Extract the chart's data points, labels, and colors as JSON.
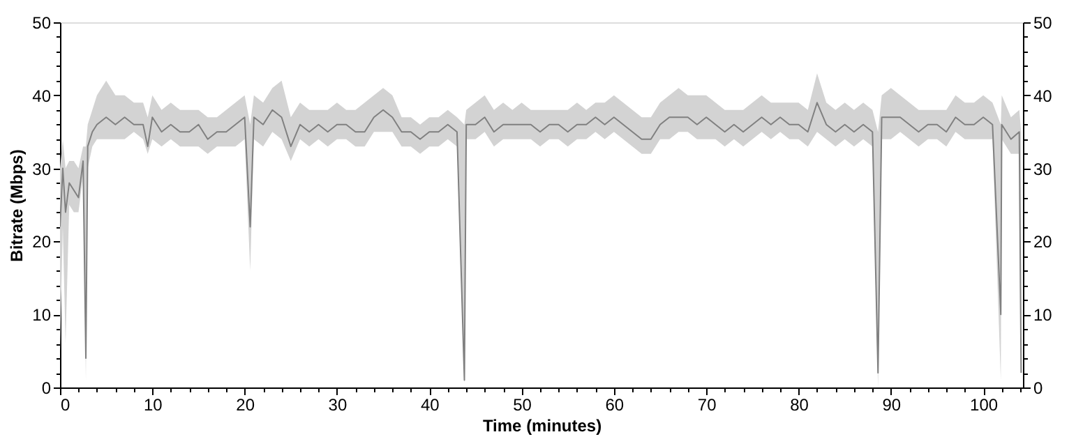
{
  "chart_data": {
    "type": "line",
    "xlabel": "Time (minutes)",
    "ylabel": "Bitrate (Mbps)",
    "x": [
      0,
      0.3,
      0.6,
      1,
      1.5,
      2,
      2.5,
      2.8,
      3,
      3.5,
      4,
      5,
      6,
      7,
      8,
      9,
      9.5,
      10,
      11,
      12,
      13,
      14,
      15,
      16,
      17,
      18,
      19,
      20,
      20.6,
      21,
      22,
      23,
      24,
      25,
      26,
      27,
      28,
      29,
      30,
      31,
      32,
      33,
      34,
      35,
      36,
      37,
      38,
      39,
      40,
      41,
      42,
      43,
      43.8,
      44,
      45,
      46,
      47,
      48,
      49,
      50,
      51,
      52,
      53,
      54,
      55,
      56,
      57,
      58,
      59,
      60,
      61,
      62,
      63,
      64,
      65,
      66,
      67,
      68,
      69,
      70,
      71,
      72,
      73,
      74,
      75,
      76,
      77,
      78,
      79,
      80,
      81,
      82,
      83,
      84,
      85,
      86,
      87,
      88,
      88.6,
      89,
      90,
      91,
      92,
      93,
      94,
      95,
      96,
      97,
      98,
      99,
      100,
      101,
      101.9,
      102,
      103,
      103.9,
      104.1
    ],
    "series": [
      {
        "color": "#808080",
        "values": [
          22,
          30,
          24,
          28,
          27,
          26,
          31,
          4,
          33,
          35,
          36,
          37,
          36,
          37,
          36,
          36,
          33,
          37,
          35,
          36,
          35,
          35,
          36,
          34,
          35,
          35,
          36,
          37,
          22,
          37,
          36,
          38,
          37,
          33,
          36,
          35,
          36,
          35,
          36,
          36,
          35,
          35,
          37,
          38,
          37,
          35,
          35,
          34,
          35,
          35,
          36,
          35,
          1,
          36,
          36,
          37,
          35,
          36,
          36,
          36,
          36,
          35,
          36,
          36,
          35,
          36,
          36,
          37,
          36,
          37,
          36,
          35,
          34,
          34,
          36,
          37,
          37,
          37,
          36,
          37,
          36,
          35,
          36,
          35,
          36,
          37,
          36,
          37,
          36,
          36,
          35,
          39,
          36,
          35,
          36,
          35,
          36,
          35,
          2,
          37,
          37,
          37,
          36,
          35,
          36,
          36,
          35,
          37,
          36,
          36,
          37,
          36,
          10,
          36,
          34,
          35,
          2
        ],
        "lower": [
          5,
          22,
          6,
          25,
          24,
          24,
          29,
          1,
          30,
          33,
          34,
          34,
          34,
          34,
          35,
          34,
          32,
          34,
          33,
          34,
          33,
          33,
          33,
          32,
          33,
          33,
          33,
          34,
          16,
          34,
          33,
          35,
          34,
          31,
          34,
          33,
          34,
          33,
          34,
          34,
          33,
          33,
          35,
          35,
          35,
          33,
          33,
          32,
          33,
          33,
          34,
          33,
          0.5,
          34,
          34,
          35,
          33,
          34,
          34,
          34,
          34,
          33,
          34,
          34,
          33,
          34,
          34,
          35,
          34,
          35,
          34,
          33,
          32,
          32,
          34,
          34,
          35,
          35,
          34,
          34,
          34,
          33,
          34,
          33,
          34,
          35,
          34,
          35,
          34,
          34,
          33,
          35,
          34,
          33,
          34,
          33,
          34,
          33,
          0,
          34,
          34,
          35,
          34,
          33,
          34,
          34,
          33,
          35,
          34,
          34,
          34,
          34,
          1,
          34,
          32,
          32,
          1
        ],
        "upper": [
          30,
          34,
          30,
          31,
          31,
          30,
          33,
          33,
          36,
          38,
          40,
          42,
          40,
          40,
          39,
          39,
          37,
          40,
          38,
          39,
          38,
          38,
          38,
          37,
          37,
          38,
          39,
          40,
          36,
          40,
          39,
          41,
          42,
          37,
          39,
          38,
          38,
          38,
          39,
          38,
          38,
          39,
          40,
          41,
          40,
          37,
          37,
          36,
          37,
          37,
          38,
          37,
          36,
          38,
          39,
          40,
          38,
          39,
          38,
          39,
          38,
          38,
          38,
          38,
          38,
          39,
          38,
          39,
          39,
          40,
          39,
          38,
          37,
          37,
          39,
          40,
          41,
          40,
          40,
          40,
          39,
          38,
          38,
          38,
          39,
          40,
          39,
          39,
          39,
          39,
          38,
          43,
          39,
          38,
          39,
          38,
          39,
          38,
          35,
          40,
          41,
          40,
          39,
          38,
          38,
          38,
          38,
          40,
          39,
          39,
          40,
          39,
          36,
          40,
          37,
          38,
          35
        ]
      }
    ],
    "xlim": [
      0,
      104.3
    ],
    "xticks": [
      0,
      {
        "value": 2,
        "label": null
      },
      {
        "value": 4,
        "label": null
      },
      {
        "value": 6,
        "label": null
      },
      {
        "value": 8,
        "label": null
      },
      10,
      {
        "value": 12,
        "label": null
      },
      {
        "value": 14,
        "label": null
      },
      {
        "value": 16,
        "label": null
      },
      {
        "value": 18,
        "label": null
      },
      20,
      {
        "value": 22,
        "label": null
      },
      {
        "value": 24,
        "label": null
      },
      {
        "value": 26,
        "label": null
      },
      {
        "value": 28,
        "label": null
      },
      30,
      {
        "value": 32,
        "label": null
      },
      {
        "value": 34,
        "label": null
      },
      {
        "value": 36,
        "label": null
      },
      {
        "value": 38,
        "label": null
      },
      40,
      {
        "value": 42,
        "label": null
      },
      {
        "value": 44,
        "label": null
      },
      {
        "value": 46,
        "label": null
      },
      {
        "value": 48,
        "label": null
      },
      50,
      {
        "value": 52,
        "label": null
      },
      {
        "value": 54,
        "label": null
      },
      {
        "value": 56,
        "label": null
      },
      {
        "value": 58,
        "label": null
      },
      60,
      {
        "value": 62,
        "label": null
      },
      {
        "value": 64,
        "label": null
      },
      {
        "value": 66,
        "label": null
      },
      {
        "value": 68,
        "label": null
      },
      70,
      {
        "value": 72,
        "label": null
      },
      {
        "value": 74,
        "label": null
      },
      {
        "value": 76,
        "label": null
      },
      {
        "value": 78,
        "label": null
      },
      80,
      {
        "value": 82,
        "label": null
      },
      {
        "value": 84,
        "label": null
      },
      {
        "value": 86,
        "label": null
      },
      {
        "value": 88,
        "label": null
      },
      90,
      {
        "value": 92,
        "label": null
      },
      {
        "value": 94,
        "label": null
      },
      {
        "value": 96,
        "label": null
      },
      {
        "value": 98,
        "label": null
      },
      100,
      {
        "value": 102,
        "label": null
      },
      {
        "value": 104,
        "label": null
      }
    ],
    "ylim": [
      0,
      50
    ],
    "yticks": [
      0,
      {
        "value": 2,
        "label": null
      },
      {
        "value": 4,
        "label": null
      },
      {
        "value": 6,
        "label": null
      },
      {
        "value": 8,
        "label": null
      },
      10,
      {
        "value": 12,
        "label": null
      },
      {
        "value": 14,
        "label": null
      },
      {
        "value": 16,
        "label": null
      },
      {
        "value": 18,
        "label": null
      },
      20,
      {
        "value": 22,
        "label": null
      },
      {
        "value": 24,
        "label": null
      },
      {
        "value": 26,
        "label": null
      },
      {
        "value": 28,
        "label": null
      },
      30,
      {
        "value": 32,
        "label": null
      },
      {
        "value": 34,
        "label": null
      },
      {
        "value": 36,
        "label": null
      },
      {
        "value": 38,
        "label": null
      },
      40,
      {
        "value": 42,
        "label": null
      },
      {
        "value": 44,
        "label": null
      },
      {
        "value": 46,
        "label": null
      },
      {
        "value": 48,
        "label": null
      },
      50
    ],
    "y2lim": [
      0,
      50
    ],
    "y2ticks": [
      0,
      {
        "value": 2,
        "label": null
      },
      {
        "value": 4,
        "label": null
      },
      {
        "value": 6,
        "label": null
      },
      {
        "value": 8,
        "label": null
      },
      10,
      {
        "value": 12,
        "label": null
      },
      {
        "value": 14,
        "label": null
      },
      {
        "value": 16,
        "label": null
      },
      {
        "value": 18,
        "label": null
      },
      20,
      {
        "value": 22,
        "label": null
      },
      {
        "value": 24,
        "label": null
      },
      {
        "value": 26,
        "label": null
      },
      {
        "value": 28,
        "label": null
      },
      30,
      {
        "value": 32,
        "label": null
      },
      {
        "value": 34,
        "label": null
      },
      {
        "value": 36,
        "label": null
      },
      {
        "value": 38,
        "label": null
      },
      40,
      {
        "value": 42,
        "label": null
      },
      {
        "value": 44,
        "label": null
      },
      {
        "value": 46,
        "label": null
      },
      {
        "value": 48,
        "label": null
      },
      50
    ]
  }
}
